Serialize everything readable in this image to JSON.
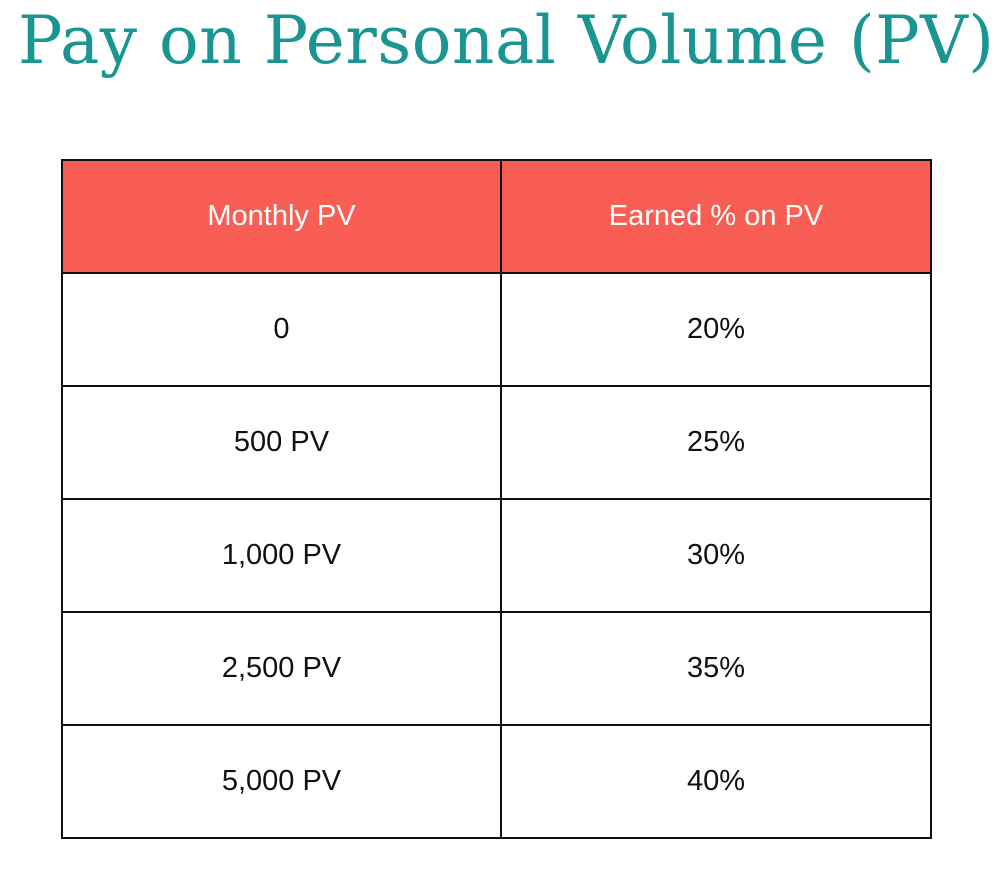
{
  "title": "Pay on Personal Volume (PV)",
  "colors": {
    "title": "#1a9591",
    "header_bg": "#f95e55"
  },
  "table": {
    "headers": [
      "Monthly PV",
      "Earned % on PV"
    ],
    "rows": [
      [
        "0",
        "20%"
      ],
      [
        "500 PV",
        "25%"
      ],
      [
        "1,000 PV",
        "30%"
      ],
      [
        "2,500 PV",
        "35%"
      ],
      [
        "5,000 PV",
        "40%"
      ]
    ]
  }
}
